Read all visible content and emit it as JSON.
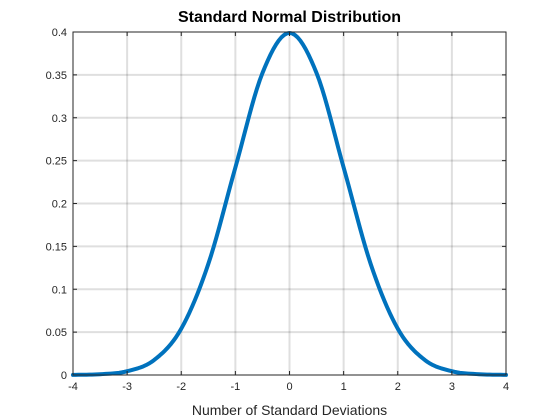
{
  "chart_data": {
    "type": "line",
    "title": "Standard Normal Distribution",
    "xlabel": "Number of Standard Deviations",
    "ylabel": "",
    "xlim": [
      -4,
      4
    ],
    "ylim": [
      0,
      0.4
    ],
    "grid": true,
    "x_ticks": [
      -4,
      -3,
      -2,
      -1,
      0,
      1,
      2,
      3,
      4
    ],
    "x_tick_labels": [
      "-4",
      "-3",
      "-2",
      "-1",
      "0",
      "1",
      "2",
      "3",
      "4"
    ],
    "y_ticks": [
      0,
      0.05,
      0.1,
      0.15,
      0.2,
      0.25,
      0.3,
      0.35,
      0.4
    ],
    "y_tick_labels": [
      "0",
      "0.05",
      "0.1",
      "0.15",
      "0.2",
      "0.25",
      "0.3",
      "0.35",
      "0.4"
    ],
    "series": [
      {
        "color": "#0072bd",
        "x": [
          -4,
          -3.5,
          -3,
          -2.5,
          -2,
          -1.5,
          -1,
          -0.5,
          0,
          0.5,
          1,
          1.5,
          2,
          2.5,
          3,
          3.5,
          4
        ],
        "y": [
          0.0001,
          0.0009,
          0.0044,
          0.0175,
          0.054,
          0.1295,
          0.242,
          0.3521,
          0.3989,
          0.3521,
          0.242,
          0.1295,
          0.054,
          0.0175,
          0.0044,
          0.0009,
          0.0001
        ]
      }
    ]
  }
}
